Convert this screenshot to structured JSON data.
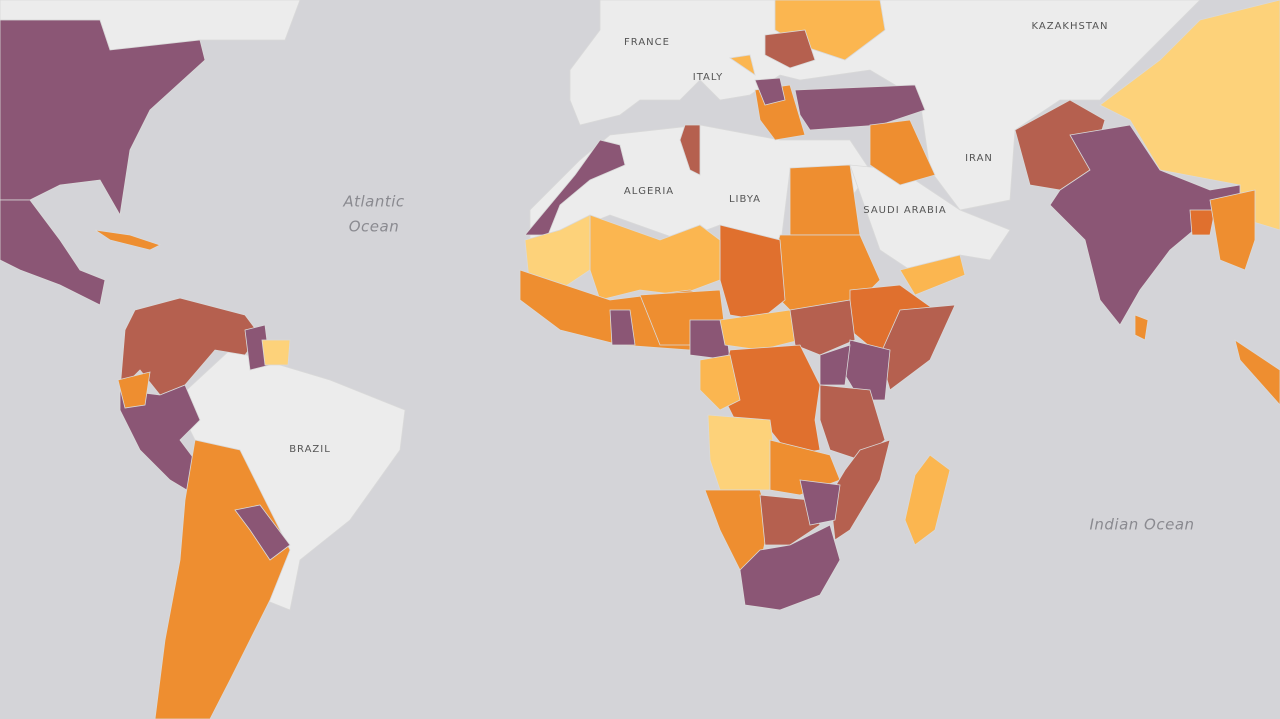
{
  "map": {
    "countries": [
      "FRANCE",
      "ITALY",
      "KAZAKHSTAN",
      "ALGERIA",
      "LIBYA",
      "IRAN",
      "SAUDI ARABIA",
      "BRAZIL"
    ],
    "oceans": [
      {
        "lines": [
          "Atlantic",
          "Ocean"
        ]
      },
      {
        "lines": [
          "Indian Ocean"
        ]
      }
    ]
  }
}
